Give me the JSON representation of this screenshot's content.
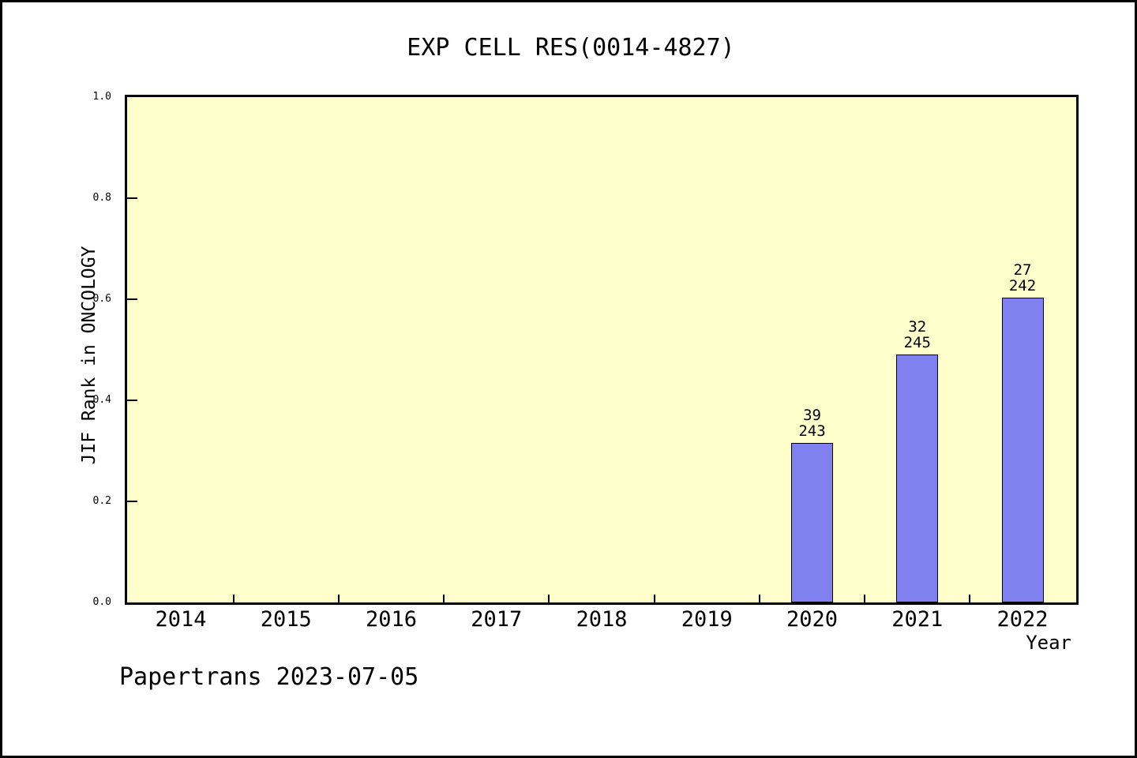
{
  "page": {
    "title": "EXP CELL RES(0014-4827)",
    "footer": "Papertrans 2023-07-05"
  },
  "colors": {
    "page_bg": "#ffffff",
    "page_border": "#000000",
    "plot_bg": "#ffffcc",
    "plot_border": "#000000",
    "bar_fill": "#8080f0",
    "bar_border": "#000000",
    "text": "#000000"
  },
  "chart_data": {
    "type": "bar",
    "title": "EXP CELL RES(0014-4827)",
    "xlabel": "Year",
    "ylabel": "JIF Rank in ONCOLOGY",
    "categories": [
      2014,
      2015,
      2016,
      2017,
      2018,
      2019,
      2020,
      2021,
      2022
    ],
    "values": [
      null,
      null,
      null,
      null,
      null,
      null,
      0.316,
      0.491,
      0.603
    ],
    "points": [
      {
        "year": 2020,
        "value": 0.316,
        "rank": "39",
        "total": "243"
      },
      {
        "year": 2021,
        "value": 0.491,
        "rank": "32",
        "total": "245"
      },
      {
        "year": 2022,
        "value": 0.603,
        "rank": "27",
        "total": "242"
      }
    ],
    "ylim": [
      0,
      1
    ],
    "yticks": [
      0,
      0.2,
      0.4,
      0.6,
      0.8,
      1
    ],
    "grid": false,
    "legend": "none"
  }
}
